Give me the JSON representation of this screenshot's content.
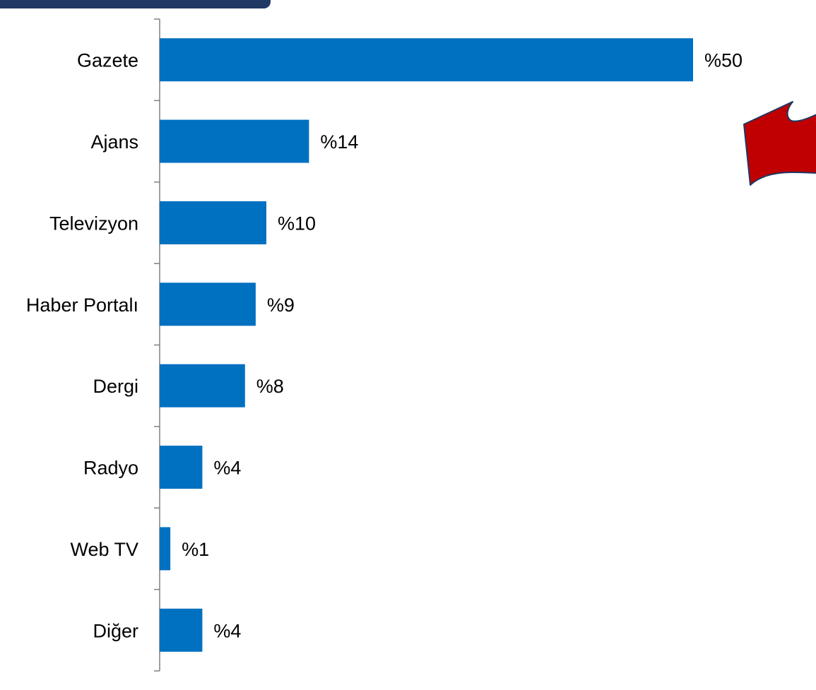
{
  "colors": {
    "bar": "#0070C0",
    "arrow_fill": "#C00000",
    "arrow_stroke": "#1F3864",
    "header_band": "#1F3864",
    "axis": "#808080"
  },
  "annotation": {
    "icon": "curved-arrow-left-icon"
  },
  "chart_data": {
    "type": "bar",
    "orientation": "horizontal",
    "title": "",
    "xlabel": "",
    "ylabel": "",
    "categories": [
      "Gazete",
      "Ajans",
      "Televizyon",
      "Haber Portalı",
      "Dergi",
      "Radyo",
      "Web TV",
      "Diğer"
    ],
    "values": [
      50,
      14,
      10,
      9,
      8,
      4,
      1,
      4
    ],
    "value_labels": [
      "%50",
      "%14",
      "%10",
      "%9",
      "%8",
      "%4",
      "%1",
      "%4"
    ],
    "xlim": [
      0,
      50
    ],
    "grid": false,
    "legend": "none"
  }
}
